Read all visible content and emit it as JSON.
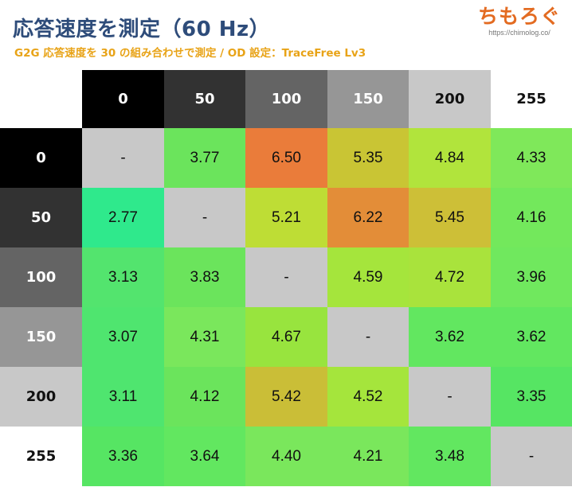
{
  "header": {
    "title": "応答速度を測定（60 Hz）",
    "subtitle": "G2G 応答速度を 30 の組み合わせで測定 / OD 設定：TraceFree Lv3",
    "logo_name": "ちもろぐ",
    "logo_url": "https://chimolog.co/"
  },
  "chart_data": {
    "type": "heatmap",
    "title": "応答速度を測定（60 Hz）",
    "subtitle": "G2G 応答速度を 30 の組み合わせで測定 / OD 設定：TraceFree Lv3",
    "columns": [
      "0",
      "50",
      "100",
      "150",
      "200",
      "255"
    ],
    "rows": [
      "0",
      "50",
      "100",
      "150",
      "200",
      "255"
    ],
    "values": [
      [
        null,
        3.77,
        6.5,
        5.35,
        4.84,
        4.33
      ],
      [
        2.77,
        null,
        5.21,
        6.22,
        5.45,
        4.16
      ],
      [
        3.13,
        3.83,
        null,
        4.59,
        4.72,
        3.96
      ],
      [
        3.07,
        4.31,
        4.67,
        null,
        3.62,
        3.62
      ],
      [
        3.11,
        4.12,
        5.42,
        4.52,
        null,
        3.35
      ],
      [
        3.36,
        3.64,
        4.4,
        4.21,
        3.48,
        null
      ]
    ],
    "labels": [
      [
        "-",
        "3.77",
        "6.50",
        "5.35",
        "4.84",
        "4.33"
      ],
      [
        "2.77",
        "-",
        "5.21",
        "6.22",
        "5.45",
        "4.16"
      ],
      [
        "3.13",
        "3.83",
        "-",
        "4.59",
        "4.72",
        "3.96"
      ],
      [
        "3.07",
        "4.31",
        "4.67",
        "-",
        "3.62",
        "3.62"
      ],
      [
        "3.11",
        "4.12",
        "5.42",
        "4.52",
        "-",
        "3.35"
      ],
      [
        "3.36",
        "3.64",
        "4.40",
        "4.21",
        "3.48",
        "-"
      ]
    ],
    "cell_colors": [
      [
        "#c8c8c8",
        "#6be45c",
        "#ea7c3a",
        "#c9c534",
        "#b1e43c",
        "#7fe85a"
      ],
      [
        "#2fe98c",
        "#c8c8c8",
        "#bedd35",
        "#e38d38",
        "#cdbf37",
        "#73e85c"
      ],
      [
        "#53e46e",
        "#6be45c",
        "#c8c8c8",
        "#a5e53c",
        "#a9e33c",
        "#70e85e"
      ],
      [
        "#4fe56f",
        "#7ae75c",
        "#98e43e",
        "#c8c8c8",
        "#62e760",
        "#62e760"
      ],
      [
        "#4fe56f",
        "#6be45c",
        "#cabe37",
        "#a5e53c",
        "#c8c8c8",
        "#56e563"
      ],
      [
        "#56e563",
        "#62e760",
        "#7ae75c",
        "#7ae75c",
        "#62e760",
        "#c8c8c8"
      ]
    ],
    "header_colors": {
      "0": {
        "bg": "#000000",
        "fg": "#ffffff"
      },
      "50": {
        "bg": "#323232",
        "fg": "#ffffff"
      },
      "100": {
        "bg": "#646464",
        "fg": "#ffffff"
      },
      "150": {
        "bg": "#969696",
        "fg": "#ffffff"
      },
      "200": {
        "bg": "#c8c8c8",
        "fg": "#111111"
      },
      "255": {
        "bg": "#ffffff",
        "fg": "#111111"
      }
    }
  }
}
